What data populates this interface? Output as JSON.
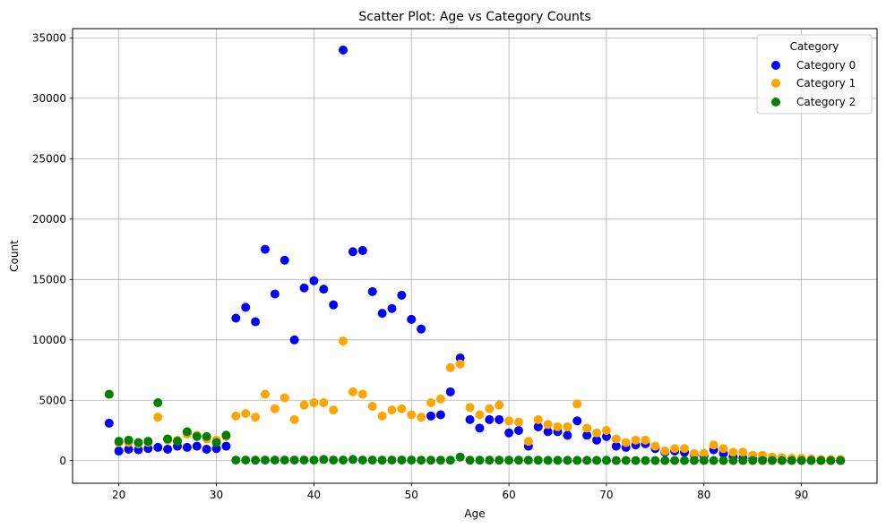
{
  "chart_data": {
    "type": "scatter",
    "title": "Scatter Plot: Age vs Category Counts",
    "xlabel": "Age",
    "ylabel": "Count",
    "xlim": [
      15.25,
      97.75
    ],
    "ylim": [
      -1870,
      35770
    ],
    "xticks": [
      20,
      30,
      40,
      50,
      60,
      70,
      80,
      90
    ],
    "yticks": [
      0,
      5000,
      10000,
      15000,
      20000,
      25000,
      30000,
      35000
    ],
    "grid": true,
    "legend": {
      "title": "Category",
      "placement": "top-right"
    },
    "series": [
      {
        "name": "Category 0",
        "color": "#0000ff",
        "x": [
          19,
          20,
          21,
          22,
          23,
          24,
          25,
          26,
          27,
          28,
          29,
          30,
          31,
          32,
          33,
          34,
          35,
          36,
          37,
          38,
          39,
          40,
          41,
          42,
          43,
          44,
          45,
          46,
          47,
          48,
          49,
          50,
          51,
          52,
          53,
          54,
          55,
          56,
          57,
          58,
          59,
          60,
          61,
          62,
          63,
          64,
          65,
          66,
          67,
          68,
          69,
          70,
          71,
          72,
          73,
          74,
          75,
          76,
          77,
          78,
          79,
          80,
          81,
          82,
          83,
          84,
          85,
          86,
          87,
          88,
          89,
          90,
          91,
          92,
          93,
          94
        ],
        "y": [
          3100,
          800,
          950,
          900,
          1000,
          1100,
          950,
          1200,
          1100,
          1200,
          950,
          1000,
          1200,
          11800,
          12700,
          11500,
          17500,
          13800,
          16600,
          10000,
          14300,
          14900,
          14200,
          12900,
          34000,
          17300,
          17400,
          14000,
          12200,
          12600,
          13700,
          11700,
          10900,
          3700,
          3800,
          5700,
          8500,
          3400,
          2700,
          3400,
          3400,
          2300,
          2500,
          1200,
          2800,
          2400,
          2400,
          2100,
          3300,
          2100,
          1700,
          2000,
          1200,
          1100,
          1300,
          1400,
          1000,
          700,
          800,
          700,
          500,
          400,
          900,
          600,
          300,
          200,
          150,
          100,
          80,
          60,
          50,
          40,
          30,
          20,
          15,
          10
        ]
      },
      {
        "name": "Category 1",
        "color": "#ffa500",
        "x": [
          19,
          20,
          21,
          22,
          23,
          24,
          25,
          26,
          27,
          28,
          29,
          30,
          31,
          32,
          33,
          34,
          35,
          36,
          37,
          38,
          39,
          40,
          41,
          42,
          43,
          44,
          45,
          46,
          47,
          48,
          49,
          50,
          51,
          52,
          53,
          54,
          55,
          56,
          57,
          58,
          59,
          60,
          61,
          62,
          63,
          64,
          65,
          66,
          67,
          68,
          69,
          70,
          71,
          72,
          73,
          74,
          75,
          76,
          77,
          78,
          79,
          80,
          81,
          82,
          83,
          84,
          85,
          86,
          87,
          88,
          89,
          90,
          91,
          92,
          93,
          94
        ],
        "y": [
          5500,
          1500,
          1500,
          1400,
          1500,
          3600,
          1700,
          1700,
          2200,
          2100,
          1800,
          1700,
          2000,
          3700,
          3900,
          3600,
          5500,
          4300,
          5200,
          3400,
          4600,
          4800,
          4800,
          4200,
          9900,
          5700,
          5500,
          4500,
          3700,
          4200,
          4300,
          3800,
          3600,
          4800,
          5100,
          7700,
          8000,
          4400,
          3800,
          4300,
          4600,
          3300,
          3200,
          1600,
          3400,
          3000,
          2800,
          2800,
          4700,
          2700,
          2300,
          2500,
          1800,
          1500,
          1700,
          1700,
          1200,
          800,
          1000,
          1000,
          600,
          600,
          1300,
          1000,
          700,
          700,
          450,
          450,
          300,
          250,
          200,
          200,
          150,
          100,
          100,
          100
        ]
      },
      {
        "name": "Category 2",
        "color": "#008000",
        "x": [
          19,
          20,
          21,
          22,
          23,
          24,
          25,
          26,
          27,
          28,
          29,
          30,
          31,
          32,
          33,
          34,
          35,
          36,
          37,
          38,
          39,
          40,
          41,
          42,
          43,
          44,
          45,
          46,
          47,
          48,
          49,
          50,
          51,
          52,
          53,
          54,
          55,
          56,
          57,
          58,
          59,
          60,
          61,
          62,
          63,
          64,
          65,
          66,
          67,
          68,
          69,
          70,
          71,
          72,
          73,
          74,
          75,
          76,
          77,
          78,
          79,
          80,
          81,
          82,
          83,
          84,
          85,
          86,
          87,
          88,
          89,
          90,
          91,
          92,
          93,
          94
        ],
        "y": [
          5500,
          1600,
          1700,
          1500,
          1600,
          4800,
          1800,
          1600,
          2400,
          2000,
          2000,
          1500,
          2100,
          50,
          50,
          40,
          50,
          50,
          50,
          50,
          50,
          50,
          100,
          50,
          50,
          100,
          50,
          50,
          40,
          50,
          50,
          50,
          40,
          40,
          40,
          40,
          300,
          40,
          40,
          40,
          40,
          40,
          40,
          40,
          40,
          30,
          30,
          30,
          30,
          30,
          30,
          30,
          10,
          20,
          10,
          10,
          10,
          10,
          10,
          10,
          10,
          10,
          10,
          10,
          10,
          10,
          10,
          10,
          10,
          10,
          10,
          10,
          10,
          10,
          10,
          10
        ]
      }
    ]
  }
}
